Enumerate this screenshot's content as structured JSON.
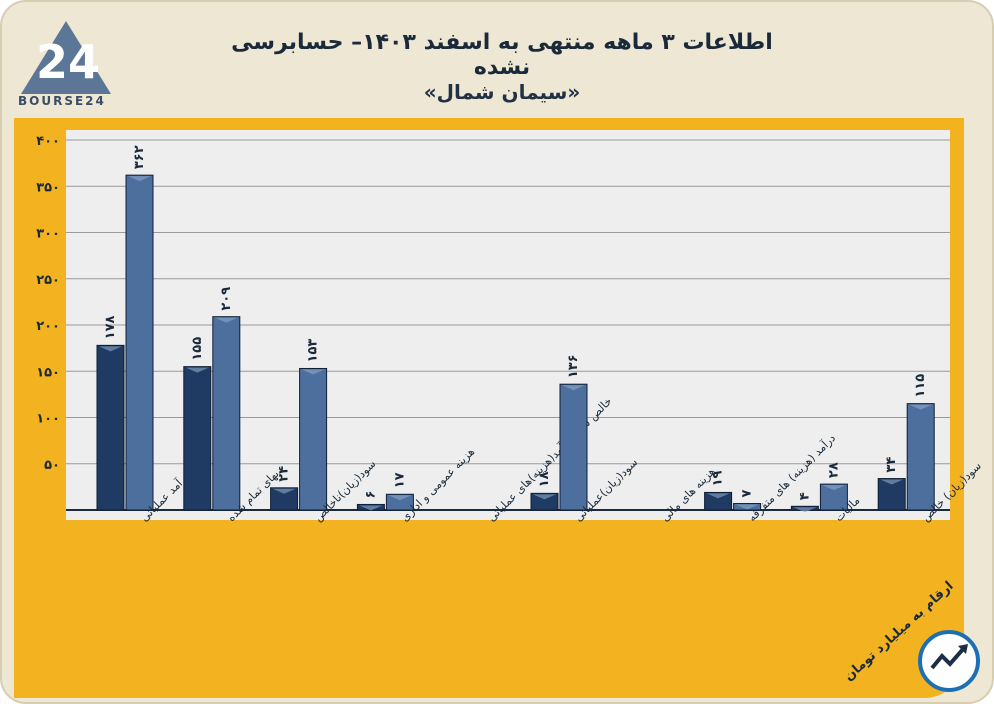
{
  "header": {
    "logo_text": "BOURSE24",
    "title": "اطلاعات ۳ ماهه منتهی به اسفند ۱۴۰۳– حسابرسی نشده",
    "subtitle": "«سیمان شمال»"
  },
  "footer": {
    "units_note": "ارقام به میلیارد تومان"
  },
  "colors": {
    "series_a": "#1f3b63",
    "series_b": "#4d6f9e",
    "panel": "#f3b21f",
    "plot_bg": "#eeeeee"
  },
  "chart_data": {
    "type": "bar",
    "title": "",
    "xlabel": "",
    "ylabel": "",
    "ylim": [
      0,
      400
    ],
    "yticks": [
      50,
      100,
      150,
      200,
      250,
      300,
      350,
      400
    ],
    "ytick_labels": [
      "۵۰",
      "۱۰۰",
      "۱۵۰",
      "۲۰۰",
      "۲۵۰",
      "۳۰۰",
      "۳۵۰",
      "۴۰۰"
    ],
    "categories": [
      "درآمد عملیاتی",
      "بهای تمام شده",
      "سود(زیان)ناخالص",
      "هزینه عمومی و اداری",
      "خالص سایر درآمد(هزینه)های عملیاتی",
      "سود(زیان)عملیاتی",
      "هزینه های مالی",
      "درآمد (هزینه) های متفرقه",
      "مالیات",
      "سود(زیان) خالص"
    ],
    "series": [
      {
        "values": [
          178,
          155,
          24,
          6,
          null,
          18,
          null,
          19,
          4,
          34
        ],
        "labels": [
          "۱۷۸",
          "۱۵۵",
          "۲۴",
          "۶",
          "",
          "۱۸",
          "",
          "۱۹",
          "۴",
          "۳۴"
        ]
      },
      {
        "values": [
          362,
          209,
          153,
          17,
          null,
          136,
          null,
          7,
          28,
          115
        ],
        "labels": [
          "۳۶۲",
          "۲۰۹",
          "۱۵۳",
          "۱۷",
          "",
          "۱۳۶",
          "",
          "۷",
          "۲۸",
          "۱۱۵"
        ]
      }
    ],
    "grid": true,
    "legend": "none"
  }
}
